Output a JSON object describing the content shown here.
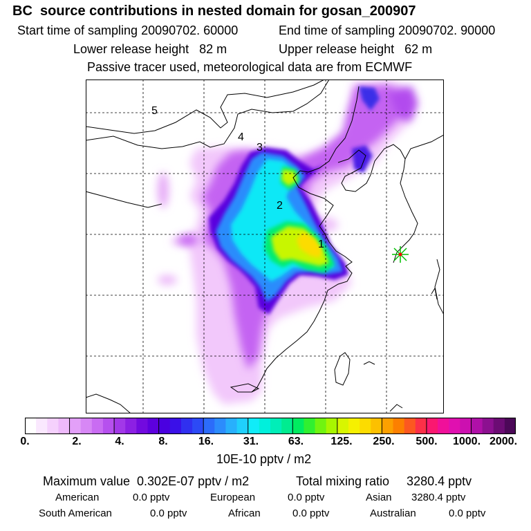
{
  "title": "BC  source contributions in nested domain for gosan_200907",
  "sampling": {
    "start": "Start time of sampling 20090702. 60000",
    "end": "End time of sampling 20090702. 90000"
  },
  "release": {
    "lower": "Lower release height   82 m",
    "upper": "Upper release height   62 m"
  },
  "tracer_note": "Passive tracer used, meteorological data are from ECMWF",
  "map": {
    "markers": [
      "1",
      "2",
      "3",
      "4",
      "5"
    ],
    "receptor_icon": "star-burst-icon"
  },
  "colorbar": {
    "ticks": [
      "0.",
      "2.",
      "4.",
      "8.",
      "16.",
      "31.",
      "63.",
      "125.",
      "250.",
      "500.",
      "1000.",
      "2000."
    ],
    "colors": [
      "#ffffff",
      "#fae8fe",
      "#f5d1fd",
      "#eebafb",
      "#e3a0f8",
      "#d787f5",
      "#c96cf2",
      "#b650ee",
      "#a238e8",
      "#8c20e3",
      "#720adf",
      "#5d00de",
      "#4a00e0",
      "#3a10e8",
      "#3030f0",
      "#2c4af6",
      "#2c6cfa",
      "#2c8cfc",
      "#28b0fc",
      "#20d0fc",
      "#10ecf8",
      "#00f0dc",
      "#00eeb8",
      "#00ec90",
      "#00ec60",
      "#30f030",
      "#70f410",
      "#a8f600",
      "#d8f600",
      "#f6f000",
      "#fcdc00",
      "#fcc000",
      "#fca000",
      "#fc8000",
      "#fc5820",
      "#fc3048",
      "#fa1870",
      "#f0109a",
      "#e010b0",
      "#cc10b0",
      "#b010a8",
      "#8c1090",
      "#6c0c74",
      "#4c0858"
    ]
  },
  "units": "10E-10 pptv / m2",
  "summary": {
    "max_value": "Maximum value  0.302E-07 pptv / m2",
    "total_mixing": "Total mixing ratio     3280.4 pptv"
  },
  "regions": [
    {
      "name": "American",
      "value": "0.0 pptv"
    },
    {
      "name": "European",
      "value": "0.0 pptv"
    },
    {
      "name": "Asian",
      "value": "3280.4 pptv"
    },
    {
      "name": "South American",
      "value": "0.0 pptv"
    },
    {
      "name": "African",
      "value": "0.0 pptv"
    },
    {
      "name": "Australian",
      "value": "0.0 pptv"
    }
  ]
}
